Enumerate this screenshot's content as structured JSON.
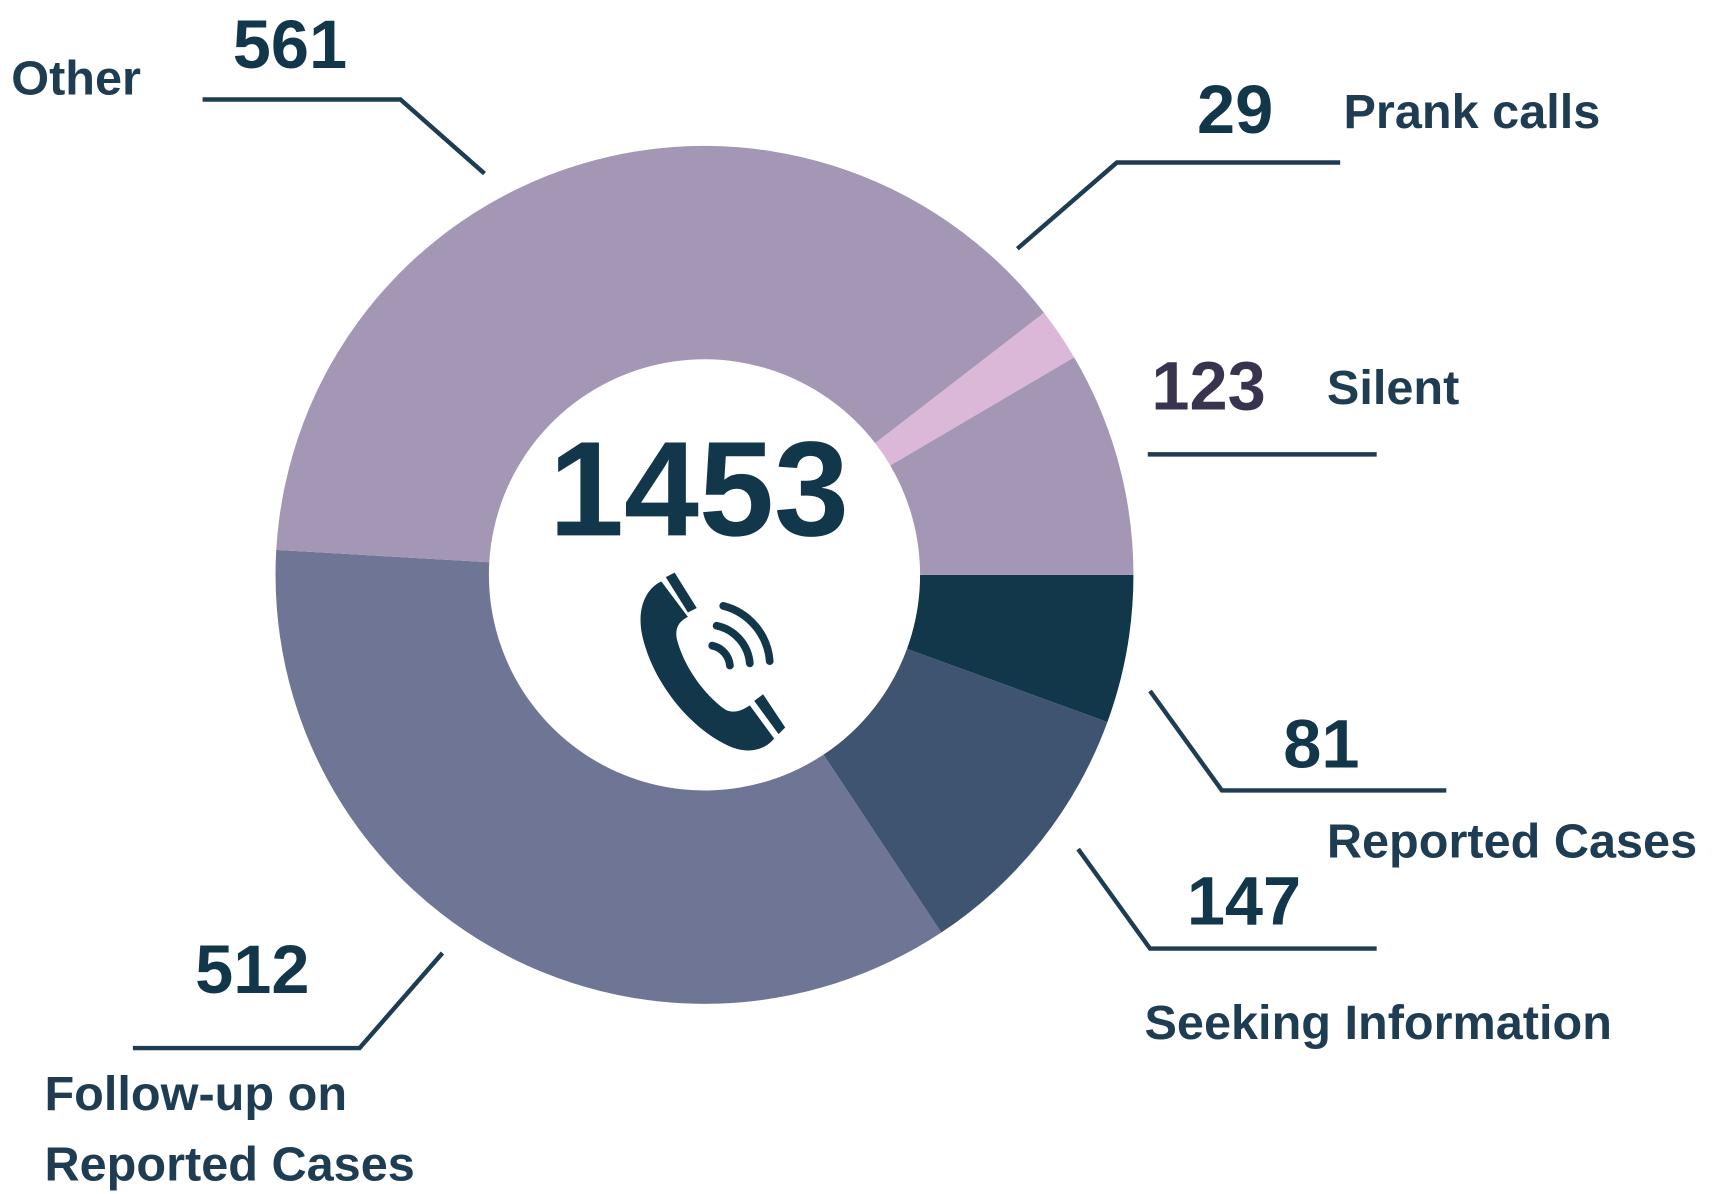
{
  "chart_data": {
    "type": "donut",
    "center_label": "1453",
    "categories": [
      "Reported Cases",
      "Seeking Information",
      "Follow-up on Reported Cases",
      "Other",
      "Prank calls",
      "Silent"
    ],
    "values": [
      81,
      147,
      512,
      561,
      29,
      123
    ],
    "colors": [
      "#12364a",
      "#3e5470",
      "#6f7594",
      "#a496b5",
      "#dcb8d8",
      "#a496b5"
    ]
  }
}
